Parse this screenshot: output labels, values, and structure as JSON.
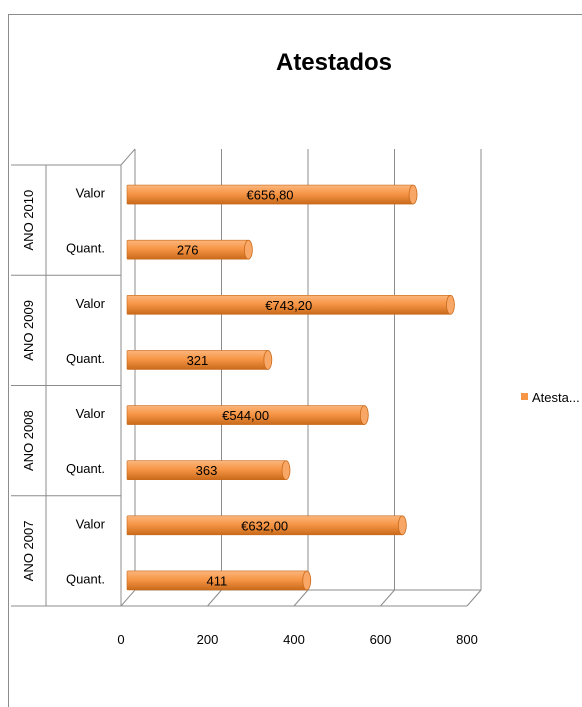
{
  "chart_data": {
    "type": "bar",
    "orientation": "horizontal",
    "style": "3d-cylinder",
    "title": "Atestados",
    "xlim": [
      0,
      800
    ],
    "xticks": [
      "0",
      "200",
      "400",
      "600",
      "800"
    ],
    "grid": true,
    "groups": [
      {
        "label": "ANO 2010",
        "categories": [
          {
            "label": "Valor",
            "value": 656.8,
            "data_label": "€656,80"
          },
          {
            "label": "Quant.",
            "value": 276,
            "data_label": "276"
          }
        ]
      },
      {
        "label": "ANO 2009",
        "categories": [
          {
            "label": "Valor",
            "value": 743.2,
            "data_label": "€743,20"
          },
          {
            "label": "Quant.",
            "value": 321,
            "data_label": "321"
          }
        ]
      },
      {
        "label": "ANO 2008",
        "categories": [
          {
            "label": "Valor",
            "value": 544.0,
            "data_label": "€544,00"
          },
          {
            "label": "Quant.",
            "value": 363,
            "data_label": "363"
          }
        ]
      },
      {
        "label": "ANO 2007",
        "categories": [
          {
            "label": "Valor",
            "value": 632.0,
            "data_label": "€632,00"
          },
          {
            "label": "Quant.",
            "value": 411,
            "data_label": "411"
          }
        ]
      }
    ],
    "series": [
      {
        "name": "Atesta...",
        "color": "#f79646"
      }
    ],
    "legend": {
      "position": "right"
    }
  }
}
